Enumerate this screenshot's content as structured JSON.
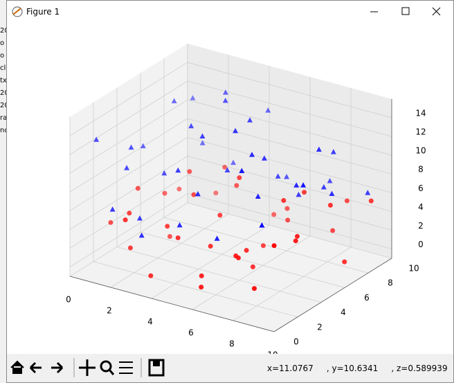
{
  "window": {
    "title": "Figure 1",
    "status": "x=11.0767     , y=10.6341     , z=0.589939",
    "background_fragments": [
      "20",
      "o",
      "o",
      "cle",
      "tx",
      "20",
      "20",
      "ra",
      "nd"
    ]
  },
  "chart_data": {
    "type": "scatter3d",
    "xlim": [
      0,
      10
    ],
    "ylim": [
      0,
      10
    ],
    "zlim": [
      -1,
      16
    ],
    "xticks": [
      0,
      2,
      4,
      6,
      8,
      10
    ],
    "yticks": [
      0,
      2,
      4,
      6,
      8,
      10
    ],
    "zticks": [
      0,
      2,
      4,
      6,
      8,
      10,
      12,
      14
    ],
    "grid": true,
    "series": [
      {
        "marker": "o",
        "color": "#ff0000",
        "x": [
          2.1,
          3.5,
          6.8,
          1.2,
          8.4,
          4.7,
          5.9,
          9.1,
          0.8,
          7.3,
          3.1,
          6.2,
          2.8,
          5.4,
          8.9,
          1.9,
          4.2,
          7.8,
          9.6,
          0.5,
          3.9,
          6.6,
          2.4,
          5.1,
          8.1,
          1.5,
          4.9,
          7.1,
          9.3,
          3.3,
          6.0,
          2.6,
          5.7,
          8.6,
          0.9,
          4.4,
          7.5,
          1.7,
          6.4,
          9.8
        ],
        "y": [
          1.5,
          0.8,
          2.3,
          3.7,
          1.1,
          4.6,
          6.2,
          3.4,
          7.9,
          5.5,
          2.9,
          0.4,
          8.3,
          9.1,
          6.7,
          5.2,
          1.9,
          8.8,
          0.7,
          2.6,
          7.4,
          4.1,
          6.0,
          3.1,
          9.5,
          9.8,
          5.9,
          2.0,
          7.2,
          4.8,
          8.1,
          0.2,
          1.3,
          4.4,
          6.5,
          9.7,
          6.9,
          2.1,
          3.9,
          8.6
        ],
        "z": [
          2.1,
          0.5,
          3.4,
          6.2,
          1.8,
          4.7,
          0.9,
          5.5,
          2.6,
          7.1,
          3.9,
          1.2,
          5.8,
          2.3,
          6.6,
          0.3,
          4.1,
          1.6,
          7.4,
          3.0,
          5.2,
          0.7,
          6.9,
          2.8,
          4.4,
          1.1,
          7.8,
          3.6,
          0.4,
          5.9,
          2.2,
          6.4,
          1.4,
          4.9,
          3.3,
          0.6,
          7.0,
          5.1,
          2.5,
          6.1
        ]
      },
      {
        "marker": "^",
        "color": "#0000ff",
        "x": [
          1.4,
          3.0,
          5.6,
          7.9,
          9.2,
          0.6,
          2.5,
          4.3,
          6.1,
          8.5,
          1.8,
          3.7,
          5.0,
          7.2,
          9.7,
          0.3,
          2.9,
          4.8,
          6.7,
          8.0,
          1.1,
          3.4,
          5.3,
          7.6,
          9.4,
          0.9,
          2.2,
          4.0,
          6.4,
          8.8,
          1.6,
          3.8,
          5.8,
          7.4,
          9.0,
          0.2,
          2.7,
          4.6,
          6.9,
          8.3
        ],
        "y": [
          2.4,
          5.1,
          8.7,
          0.9,
          6.3,
          9.4,
          1.6,
          3.8,
          7.1,
          4.5,
          0.5,
          6.8,
          2.2,
          9.6,
          3.0,
          5.7,
          8.2,
          1.0,
          4.9,
          7.7,
          3.3,
          0.2,
          6.1,
          2.8,
          9.0,
          7.3,
          4.2,
          9.9,
          1.4,
          5.9,
          8.5,
          2.6,
          4.0,
          6.6,
          0.7,
          1.9,
          9.2,
          5.4,
          3.5,
          8.0
        ],
        "z": [
          9.5,
          12.8,
          6.1,
          14.2,
          8.3,
          11.0,
          5.4,
          13.5,
          7.7,
          10.2,
          6.8,
          14.6,
          9.0,
          5.9,
          12.1,
          8.6,
          13.9,
          6.5,
          11.7,
          7.2,
          10.8,
          5.2,
          14.0,
          9.8,
          6.4,
          12.5,
          8.0,
          11.3,
          5.7,
          13.1,
          7.5,
          10.5,
          14.8,
          6.9,
          9.2,
          12.2,
          5.5,
          8.8,
          13.3,
          10.9
        ]
      }
    ]
  }
}
